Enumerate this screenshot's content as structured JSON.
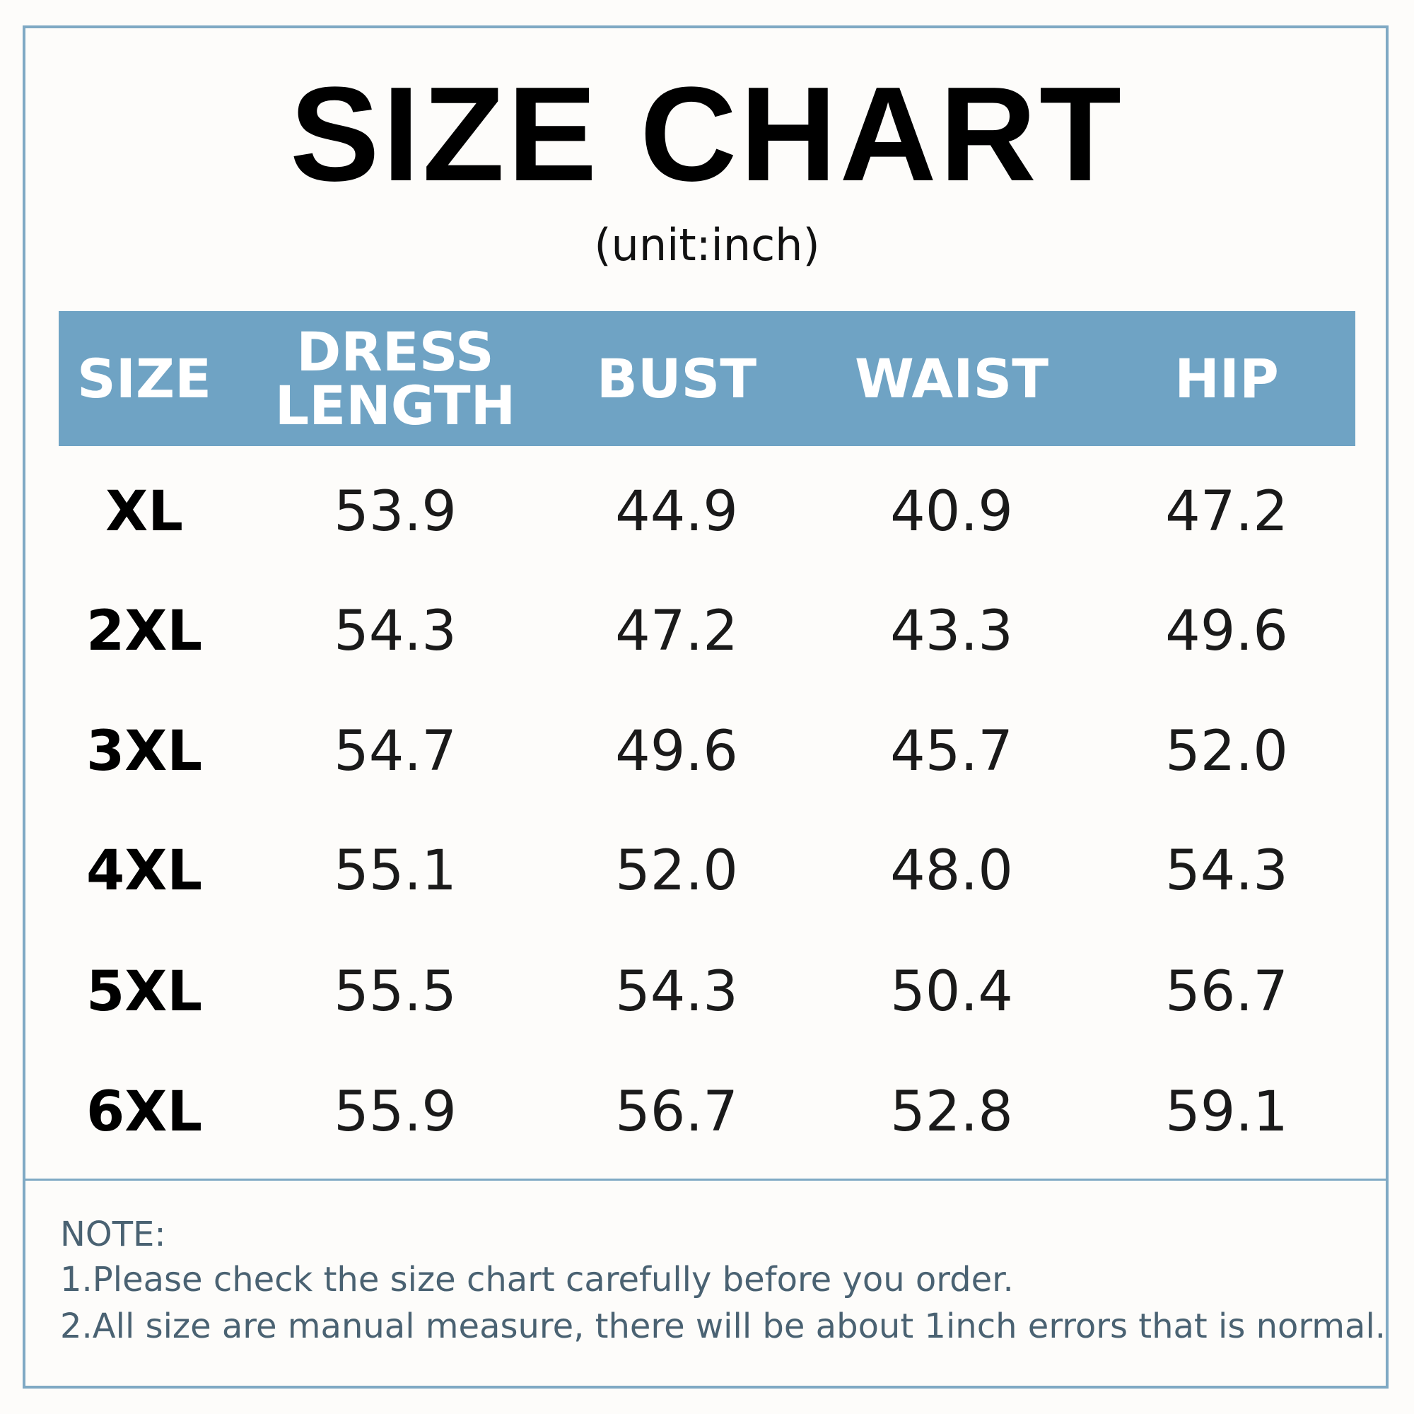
{
  "header": {
    "title": "SIZE CHART",
    "subtitle": "(unit:inch)"
  },
  "table": {
    "columns": [
      "SIZE",
      "DRESS LENGTH",
      "BUST",
      "WAIST",
      "HIP"
    ],
    "rows": [
      [
        "XL",
        "53.9",
        "44.9",
        "40.9",
        "47.2"
      ],
      [
        "2XL",
        "54.3",
        "47.2",
        "43.3",
        "49.6"
      ],
      [
        "3XL",
        "54.7",
        "49.6",
        "45.7",
        "52.0"
      ],
      [
        "4XL",
        "55.1",
        "52.0",
        "48.0",
        "54.3"
      ],
      [
        "5XL",
        "55.5",
        "54.3",
        "50.4",
        "56.7"
      ],
      [
        "6XL",
        "55.9",
        "56.7",
        "52.8",
        "59.1"
      ]
    ]
  },
  "notes": [
    "NOTE:",
    "1.Please check the size chart carefully before you order.",
    "2.All size are manual measure, there will be about 1inch errors that is normal."
  ]
}
